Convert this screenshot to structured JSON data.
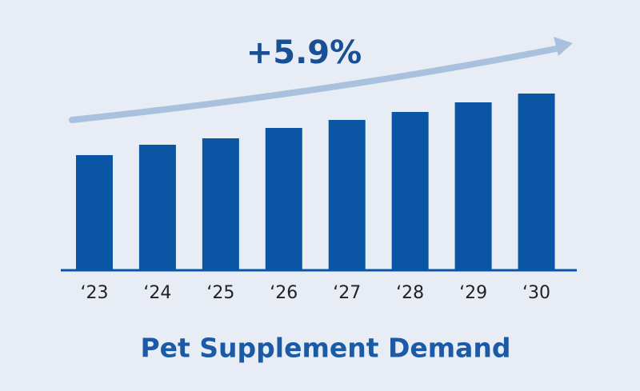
{
  "chart_data": {
    "type": "bar",
    "title": "Pet Supplement Demand",
    "annotation": "+5.9%",
    "categories": [
      "‘23",
      "‘24",
      "‘25",
      "‘26",
      "‘27",
      "‘28",
      "‘29",
      "‘30"
    ],
    "values": [
      144,
      157,
      165,
      178,
      188,
      198,
      210,
      221
    ],
    "color": "#0a56a4",
    "ylim": [
      0,
      250
    ]
  }
}
